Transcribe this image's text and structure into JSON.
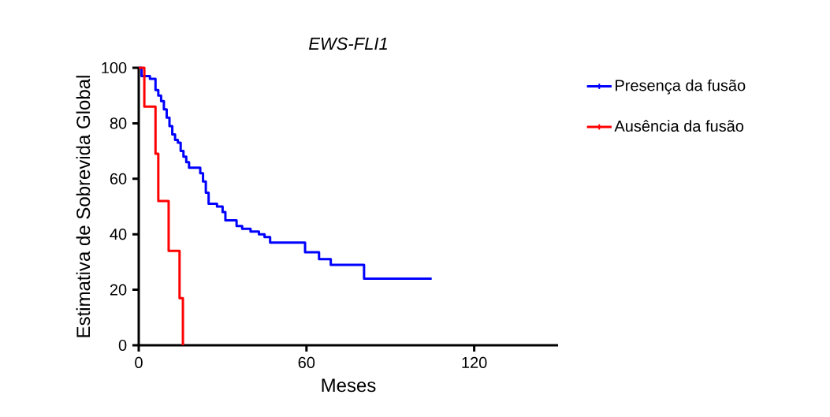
{
  "chart_data": {
    "type": "step",
    "title": "EWS-FLI1",
    "xlabel": "Meses",
    "ylabel": "Estimativa de Sobrevida Global",
    "xlim": [
      0,
      150
    ],
    "xticks": [
      0,
      60,
      120
    ],
    "ylim": [
      0,
      100
    ],
    "yticks": [
      0,
      20,
      40,
      60,
      80,
      100
    ],
    "grid": false,
    "legend": "right",
    "series": [
      {
        "name": "Presença da fusão",
        "color": "#0000ff",
        "x": [
          0,
          1,
          4,
          6,
          7,
          8,
          9,
          10,
          11,
          12,
          13,
          14,
          15,
          16,
          17,
          18,
          20,
          22,
          23,
          24,
          25,
          26,
          28,
          30,
          31,
          33,
          35,
          37,
          40,
          43,
          45,
          47,
          59.5,
          64.5,
          68.7,
          80.6,
          104.8
        ],
        "values": [
          100,
          97,
          96,
          92,
          90,
          88,
          85,
          82,
          79,
          76,
          74,
          73,
          70,
          68,
          66,
          64,
          64,
          62,
          59,
          55,
          51,
          51,
          50,
          48,
          45,
          45,
          43,
          42,
          41,
          40,
          39,
          37,
          33.5,
          31,
          29,
          24,
          24
        ]
      },
      {
        "name": "Ausência da fusão",
        "color": "#ff0000",
        "x": [
          0,
          2,
          6,
          7,
          10.7,
          14.6,
          15.8,
          15.8
        ],
        "values": [
          100,
          86,
          69,
          52,
          34,
          17,
          0,
          0
        ]
      }
    ]
  }
}
